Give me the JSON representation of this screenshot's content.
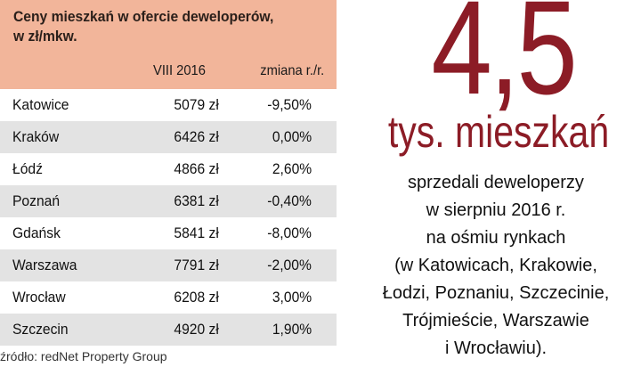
{
  "table": {
    "title_line1": "Ceny mieszkań w ofercie deweloperów,",
    "title_line2": "w zł/mkw.",
    "col_price": "VIII 2016",
    "col_change": "zmiana r./r.",
    "rows": [
      {
        "city": "Katowice",
        "price": "5079 zł",
        "change": "-9,50%"
      },
      {
        "city": "Kraków",
        "price": "6426 zł",
        "change": "0,00%"
      },
      {
        "city": "Łódź",
        "price": "4866 zł",
        "change": "2,60%"
      },
      {
        "city": "Poznań",
        "price": "6381 zł",
        "change": "-0,40%"
      },
      {
        "city": "Gdańsk",
        "price": "5841 zł",
        "change": "-8,00%"
      },
      {
        "city": "Warszawa",
        "price": "7791 zł",
        "change": "-2,00%"
      },
      {
        "city": "Wrocław",
        "price": "6208 zł",
        "change": "3,00%"
      },
      {
        "city": "Szczecin",
        "price": "4920 zł",
        "change": "1,90%"
      }
    ],
    "source": "źródło: redNet Property Group"
  },
  "highlight": {
    "number": "4,5",
    "unit": "tys. mieszkań",
    "lines": [
      "sprzedali deweloperzy",
      "w sierpniu 2016 r.",
      "na ośmiu rynkach",
      "(w Katowicach, Krakowie,",
      "Łodzi, Poznaniu, Szczecinie,",
      "Trójmieście, Warszawie",
      "i Wrocławiu)."
    ]
  },
  "colors": {
    "header_bg": "#f2b59a",
    "accent": "#8c1c26",
    "row_alt": "#e3e3e3"
  }
}
